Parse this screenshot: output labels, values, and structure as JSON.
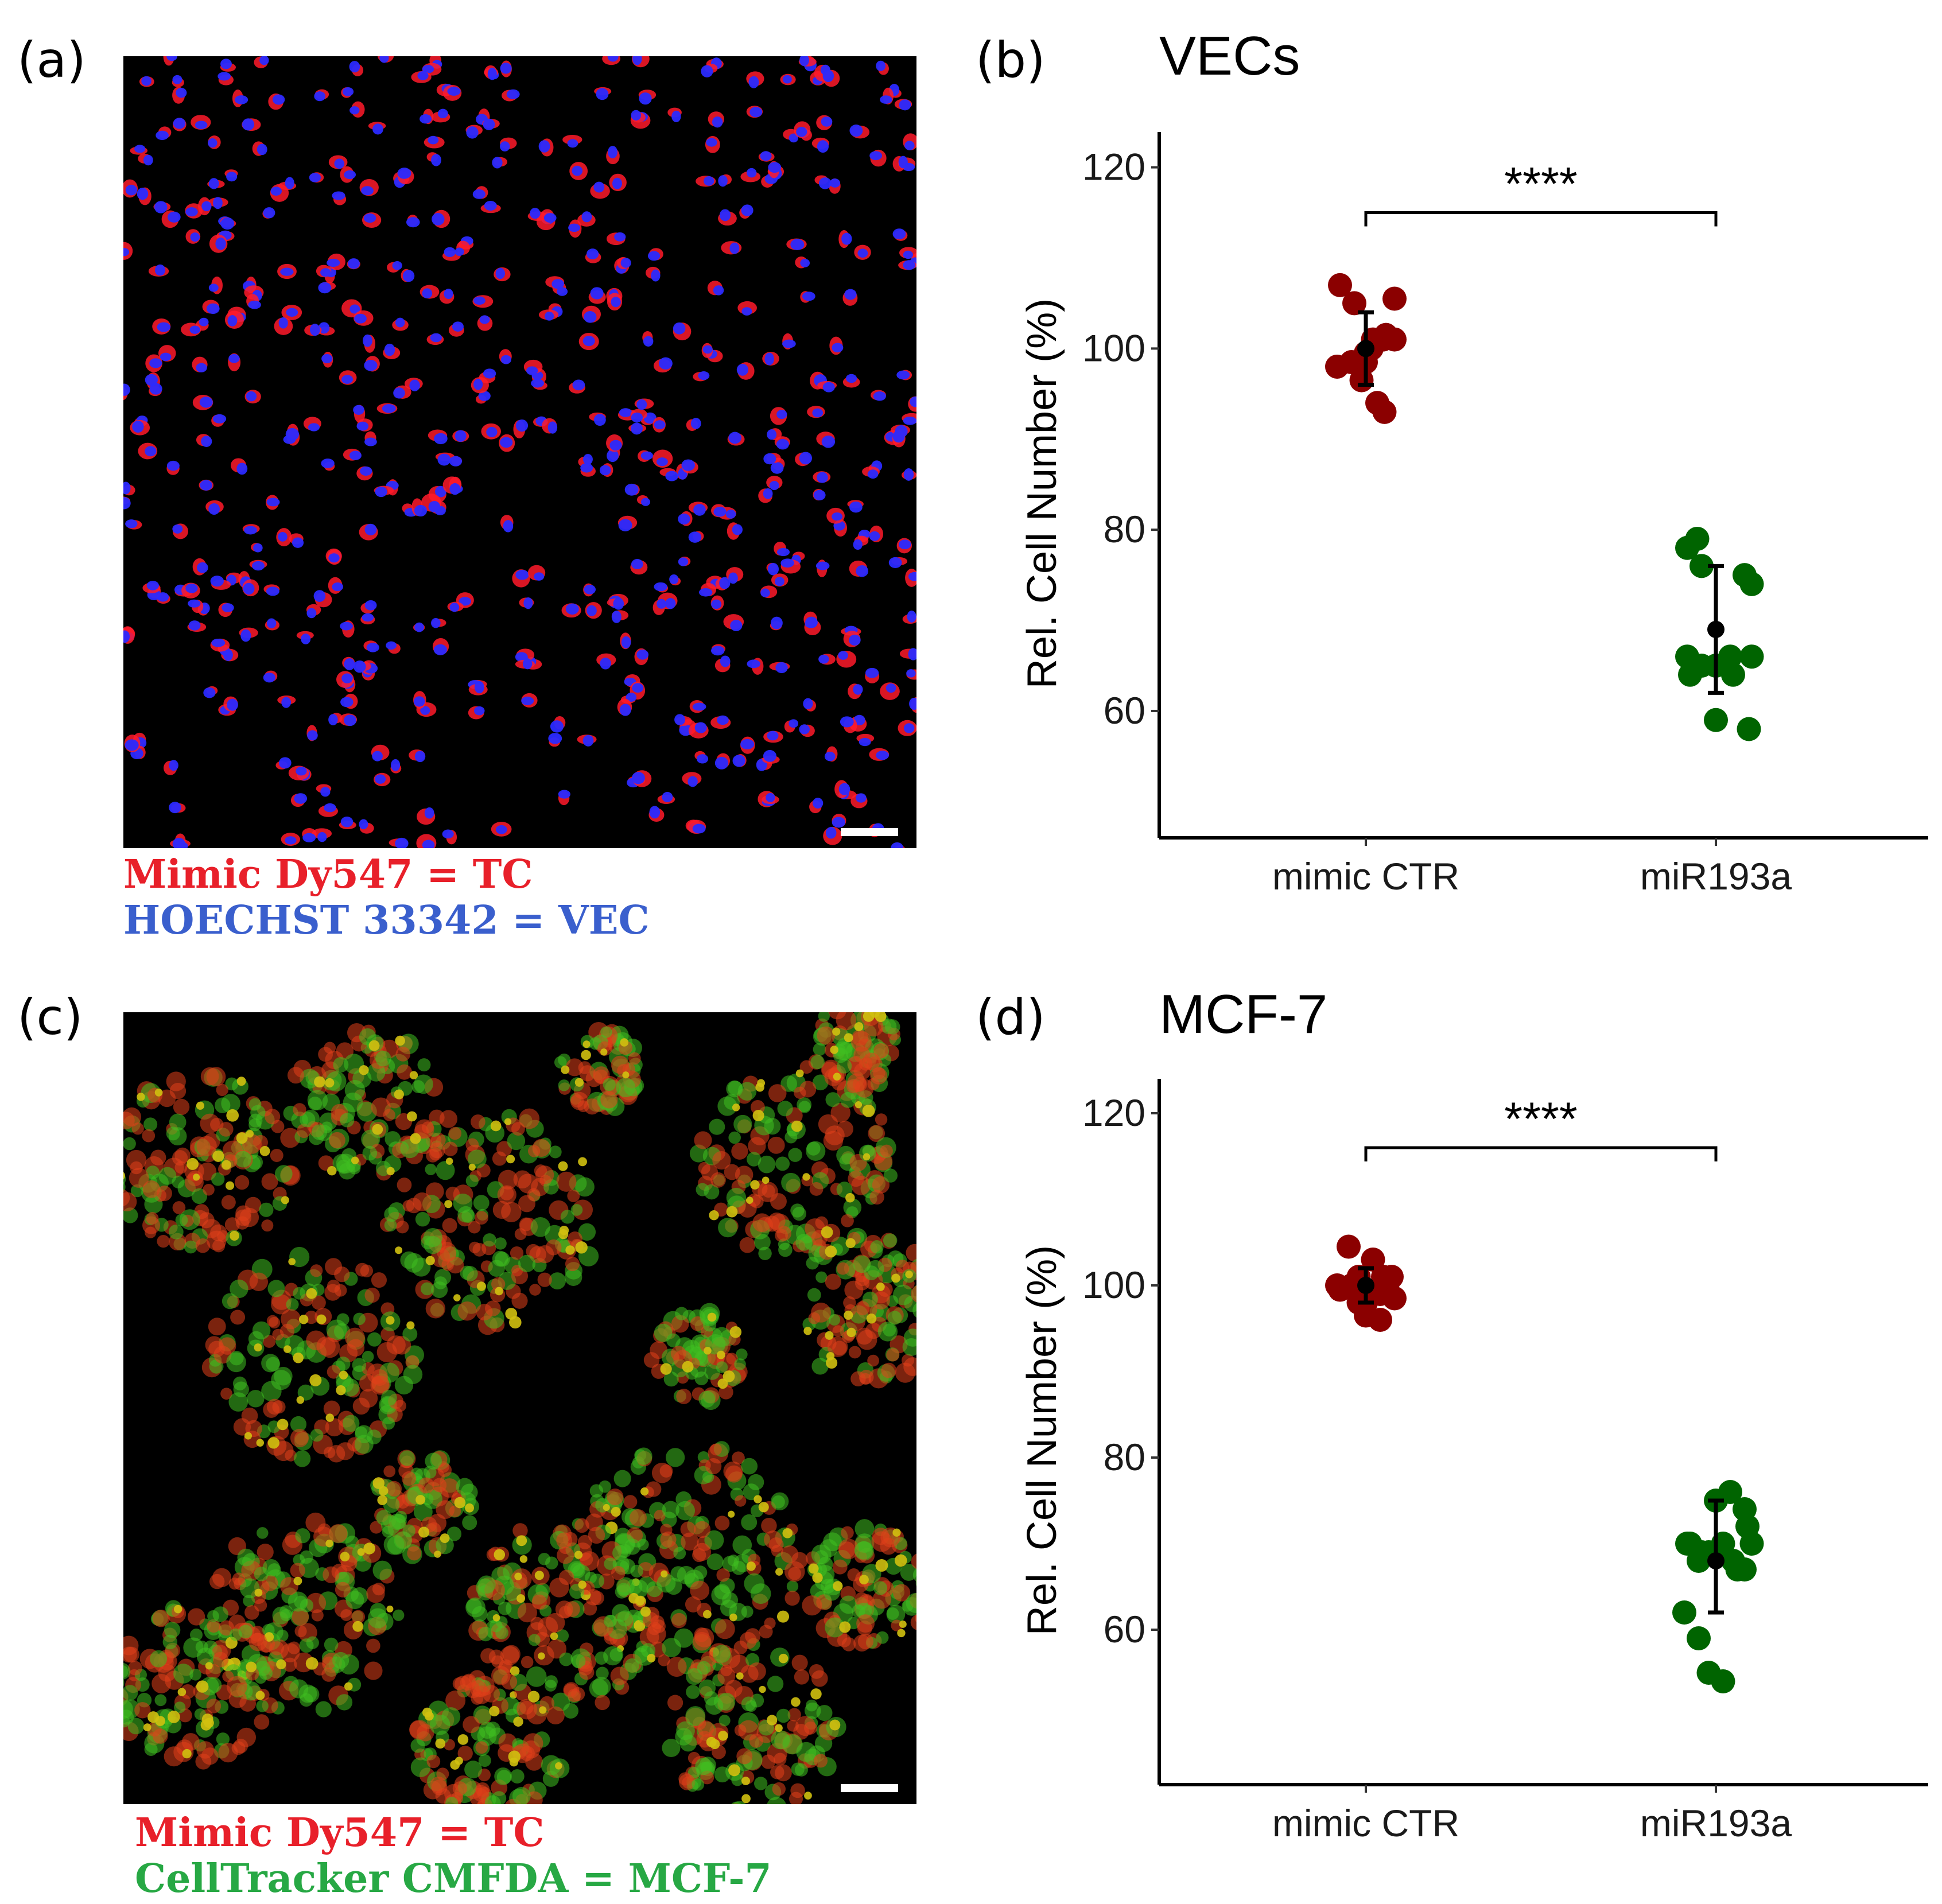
{
  "panels": {
    "a": {
      "label": "(a)",
      "caption_lines": [
        {
          "text": "Mimic Dy547 = TC",
          "color": "#e8202a"
        },
        {
          "text": "HOECHST 33342 = VEC",
          "color": "#3a5fcd"
        }
      ],
      "image": {
        "kind": "fluorescence-micrograph",
        "background": "#000000",
        "cell_colors": [
          "#ff1a2a",
          "#2a2aff"
        ]
      }
    },
    "b": {
      "label": "(b)"
    },
    "c": {
      "label": "(c)",
      "caption_lines": [
        {
          "text": "Mimic Dy547 = TC",
          "color": "#e8202a"
        },
        {
          "text": "CellTracker CMFDA = MCF-7",
          "color": "#27a844"
        }
      ],
      "image": {
        "kind": "fluorescence-micrograph",
        "background": "#000000",
        "cell_colors": [
          "#e0401a",
          "#40c020",
          "#d0c010"
        ]
      }
    },
    "d": {
      "label": "(d)"
    }
  },
  "chart_data": [
    {
      "type": "scatter",
      "title": "VECs",
      "xlabel": "",
      "ylabel": "Rel. Cell Number (%)",
      "categories": [
        "mimic CTR",
        "miR193a"
      ],
      "ylim": [
        46,
        122
      ],
      "yticks": [
        60,
        80,
        100,
        120
      ],
      "grid": false,
      "series": [
        {
          "category": "mimic CTR",
          "color": "#8b0000",
          "jitter": [
            -0.18,
            -0.08,
            0.0,
            0.05,
            0.14,
            0.2,
            -0.2,
            -0.1,
            0.04,
            0.12,
            0.2,
            -0.03,
            0.08,
            0.13,
            0.0
          ],
          "values": [
            107,
            105,
            98.5,
            101,
            101.5,
            105.5,
            98,
            98.5,
            100,
            101,
            101,
            96.5,
            94,
            93,
            99.5
          ]
        },
        {
          "category": "miR193a",
          "color": "#006400",
          "jitter": [
            -0.2,
            -0.13,
            -0.1,
            0.2,
            0.25,
            -0.2,
            -0.18,
            -0.1,
            0.0,
            0.0,
            0.1,
            0.12,
            0.25,
            0.23
          ],
          "values": [
            78,
            79,
            76,
            75,
            74,
            66,
            64,
            65,
            65,
            59,
            66,
            64,
            66,
            58
          ]
        }
      ],
      "summary": [
        {
          "category": "mimic CTR",
          "mean": 100,
          "lower": 96,
          "upper": 104
        },
        {
          "category": "miR193a",
          "mean": 69,
          "lower": 62,
          "upper": 76
        }
      ],
      "significance": {
        "text": "****",
        "from": "mimic CTR",
        "to": "miR193a",
        "y": 115
      }
    },
    {
      "type": "scatter",
      "title": "MCF-7",
      "xlabel": "",
      "ylabel": "Rel. Cell Number (%)",
      "categories": [
        "mimic CTR",
        "miR193a"
      ],
      "ylim": [
        42,
        122
      ],
      "yticks": [
        60,
        80,
        100,
        120
      ],
      "grid": false,
      "series": [
        {
          "category": "mimic CTR",
          "color": "#8b0000",
          "jitter": [
            -0.2,
            -0.12,
            -0.05,
            0.05,
            0.12,
            0.18,
            -0.18,
            -0.1,
            0.0,
            0.1,
            0.15,
            0.2,
            0.0,
            -0.05,
            0.1
          ],
          "values": [
            100,
            104.5,
            101,
            103,
            101,
            101,
            99.5,
            100,
            98,
            99,
            100,
            98.5,
            96.5,
            98,
            96
          ]
        },
        {
          "category": "miR193a",
          "color": "#006400",
          "jitter": [
            -0.18,
            -0.1,
            0.0,
            0.1,
            0.2,
            -0.22,
            -0.12,
            -0.05,
            0.05,
            0.15,
            0.22,
            -0.2,
            -0.12,
            -0.05,
            0.05,
            0.12,
            0.2,
            0.25
          ],
          "values": [
            70,
            69,
            75,
            76,
            74,
            62,
            59,
            55,
            54,
            67,
            72,
            70,
            68,
            69,
            70,
            68,
            67,
            70
          ]
        }
      ],
      "summary": [
        {
          "category": "mimic CTR",
          "mean": 100,
          "lower": 98,
          "upper": 102
        },
        {
          "category": "miR193a",
          "mean": 68,
          "lower": 62,
          "upper": 75
        }
      ],
      "significance": {
        "text": "****",
        "from": "mimic CTR",
        "to": "miR193a",
        "y": 116
      }
    }
  ]
}
